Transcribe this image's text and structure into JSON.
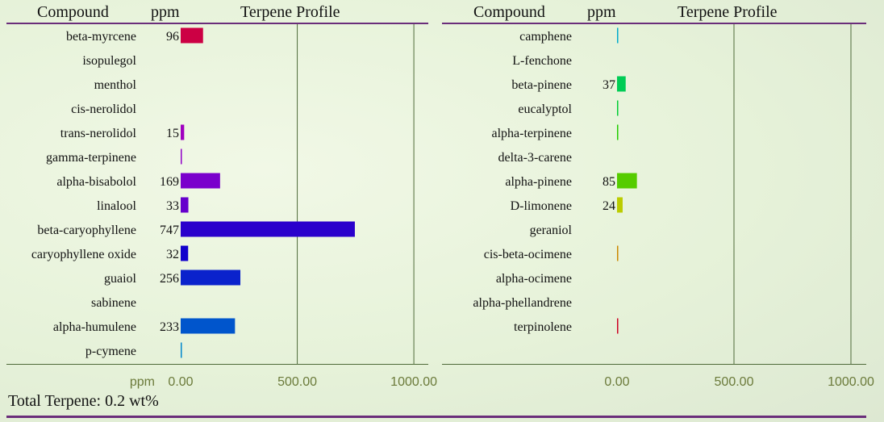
{
  "panels": [
    {
      "header": {
        "compound": "Compound",
        "ppm": "ppm",
        "title": "Terpene Profile"
      },
      "axis_label": "ppm",
      "ticks": [
        "0.00",
        "500.00",
        "1000.00"
      ]
    },
    {
      "header": {
        "compound": "Compound",
        "ppm": "ppm",
        "title": "Terpene Profile"
      },
      "axis_label": "",
      "ticks": [
        "0.00",
        "500.00",
        "1000.00"
      ]
    }
  ],
  "footer": {
    "total": "Total Terpene: 0.2 wt%"
  },
  "colors": {
    "header_rule": "#6a2d7a",
    "grid": "#4f6b3a",
    "tick_text": "#6b7a3a"
  },
  "chart_data": [
    {
      "type": "bar",
      "orientation": "horizontal",
      "xlim": [
        0,
        1000
      ],
      "categories": [
        "beta-myrcene",
        "isopulegol",
        "menthol",
        "cis-nerolidol",
        "trans-nerolidol",
        "gamma-terpinene",
        "alpha-bisabolol",
        "linalool",
        "beta-caryophyllene",
        "caryophyllene oxide",
        "guaiol",
        "sabinene",
        "alpha-humulene",
        "p-cymene"
      ],
      "values": [
        96,
        0,
        0,
        0,
        15,
        2,
        169,
        33,
        747,
        32,
        256,
        0,
        233,
        2
      ],
      "labels": [
        "96",
        "",
        "",
        "",
        "15",
        "",
        "169",
        "33",
        "747",
        "32",
        "256",
        "",
        "233",
        ""
      ],
      "colors": [
        "#cc0044",
        "#bb0077",
        "#bb0099",
        "#aa00aa",
        "#a000c0",
        "#9000c8",
        "#7a00cc",
        "#6600cc",
        "#2a00cc",
        "#1100cc",
        "#0a22cc",
        "#0033cc",
        "#0055cc",
        "#0088cc"
      ]
    },
    {
      "type": "bar",
      "orientation": "horizontal",
      "xlim": [
        0,
        1000
      ],
      "categories": [
        "camphene",
        "L-fenchone",
        "beta-pinene",
        "eucalyptol",
        "alpha-terpinene",
        "delta-3-carene",
        "alpha-pinene",
        "D-limonene",
        "geraniol",
        "cis-beta-ocimene",
        "alpha-ocimene",
        "alpha-phellandrene",
        "terpinolene"
      ],
      "values": [
        3,
        0,
        37,
        1,
        1,
        0,
        85,
        24,
        0,
        2,
        0,
        0,
        1
      ],
      "labels": [
        "",
        "",
        "37",
        "",
        "",
        "",
        "85",
        "24",
        "",
        "",
        "",
        "",
        ""
      ],
      "colors": [
        "#00aacc",
        "#00bb99",
        "#00cc55",
        "#00cc33",
        "#22cc00",
        "#44cc00",
        "#55cc00",
        "#bbcc00",
        "#ccaa00",
        "#cc8800",
        "#cc5500",
        "#cc3300",
        "#cc0022"
      ]
    }
  ]
}
